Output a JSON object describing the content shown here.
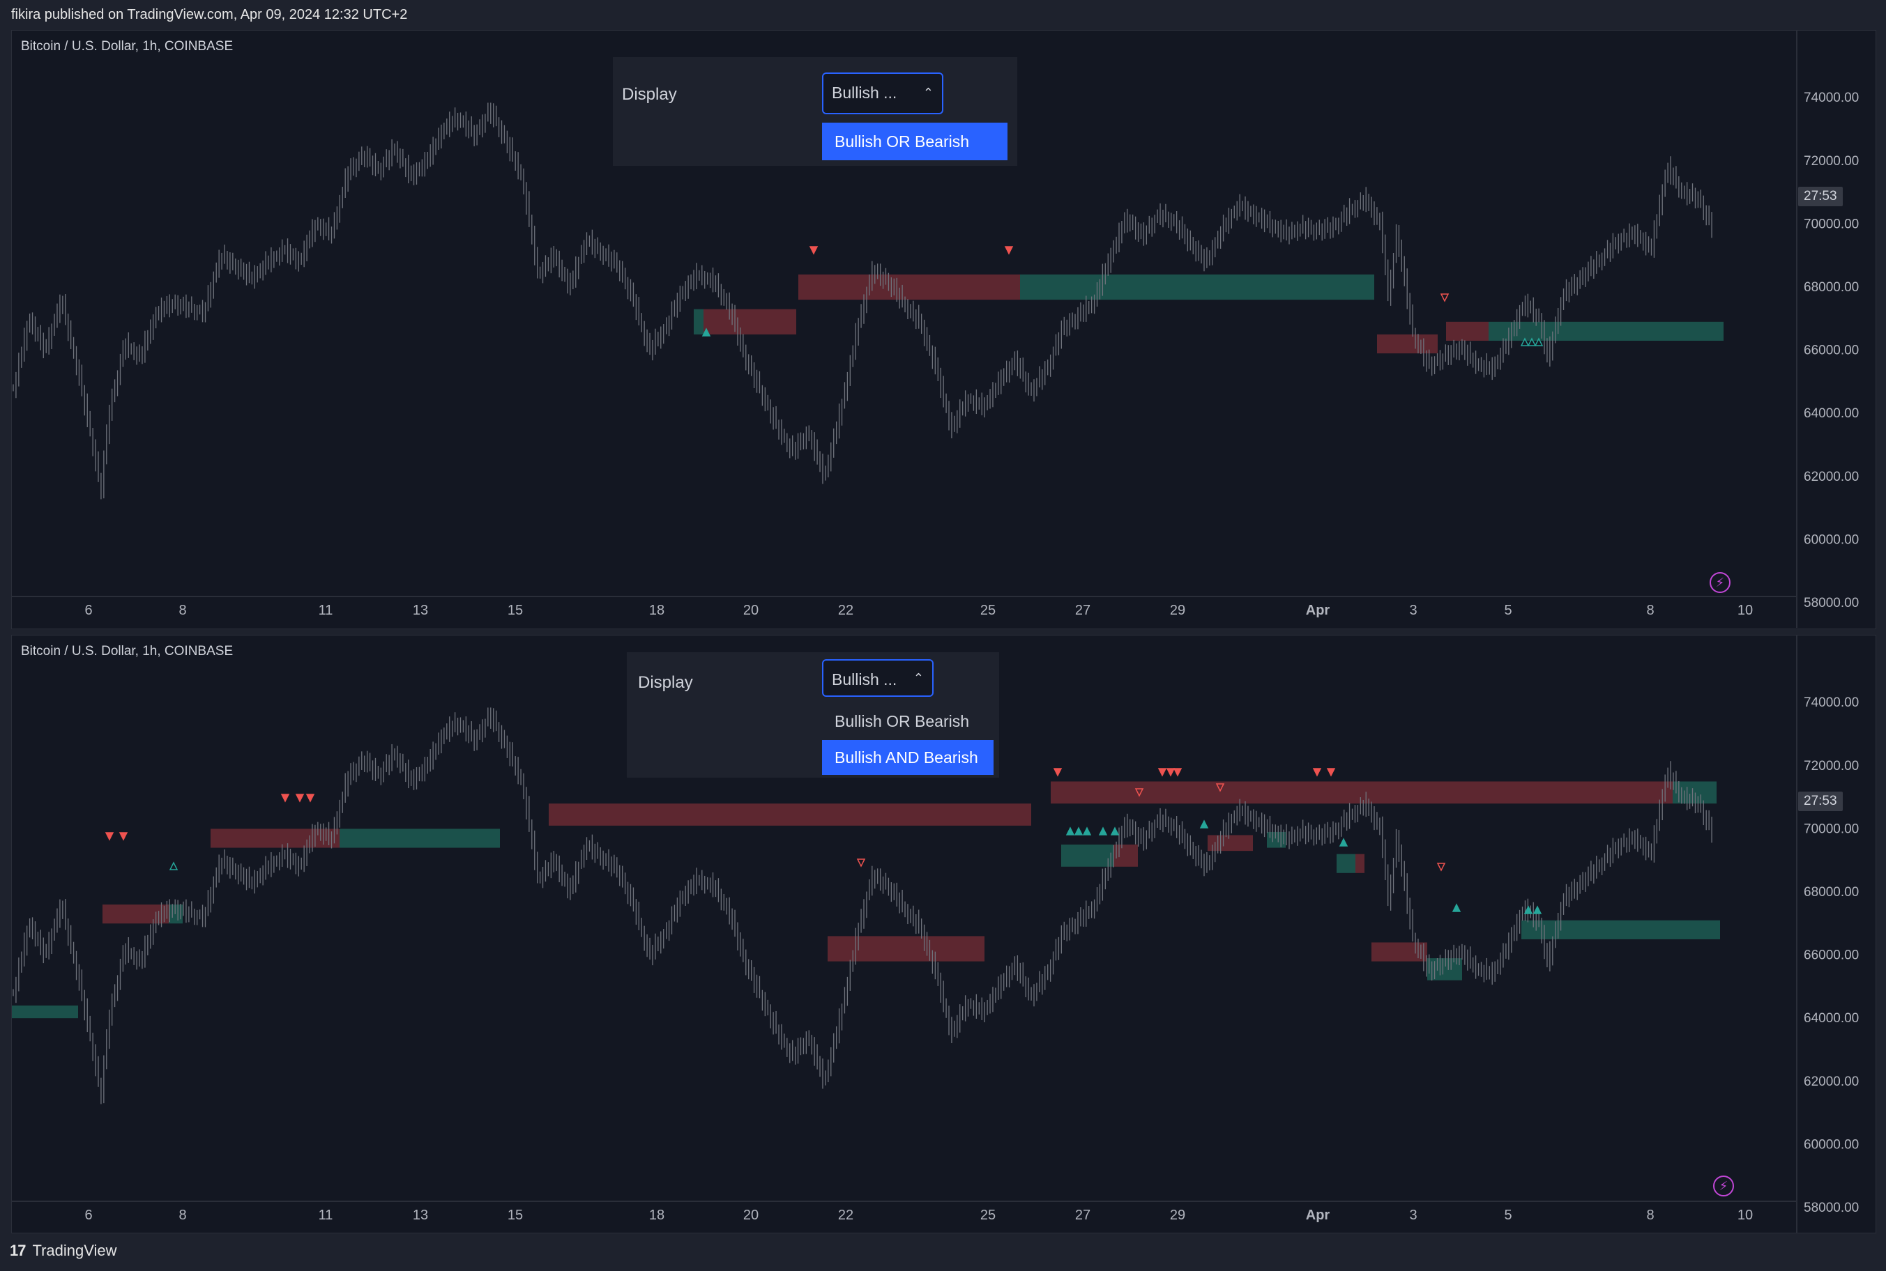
{
  "header": {
    "text": "fikira published on TradingView.com, Apr 09, 2024 12:32 UTC+2"
  },
  "footer": {
    "logo": "17",
    "brand": "TradingView"
  },
  "panels": [
    {
      "symbol": "Bitcoin / U.S. Dollar, 1h, COINBASE",
      "price_badge": "27:53",
      "dialog": {
        "label": "Display",
        "select_value": "Bullish ...",
        "options": [
          "Bullish OR Bearish"
        ],
        "selected_option": "Bullish OR Bearish"
      }
    },
    {
      "symbol": "Bitcoin / U.S. Dollar, 1h, COINBASE",
      "price_badge": "27:53",
      "dialog": {
        "label": "Display",
        "select_value": "Bullish ...",
        "options": [
          "Bullish OR Bearish",
          "Bullish AND Bearish"
        ],
        "selected_option": "Bullish AND Bearish"
      }
    }
  ],
  "chart_data": {
    "type": "candlestick",
    "y_ticks": [
      "74000.00",
      "72000.00",
      "70000.00",
      "68000.00",
      "66000.00",
      "64000.00",
      "62000.00",
      "60000.00",
      "58000.00"
    ],
    "ylim": [
      57800,
      74800
    ],
    "x_ticks": [
      "6",
      "8",
      "11",
      "13",
      "15",
      "18",
      "20",
      "22",
      "25",
      "27",
      "29",
      "Apr",
      "3",
      "5",
      "8",
      "10"
    ],
    "bull_color": "#26a69a",
    "bear_color": "#ef5350",
    "price_path": [
      [
        0,
        64800
      ],
      [
        0.01,
        67000
      ],
      [
        0.02,
        66000
      ],
      [
        0.03,
        67600
      ],
      [
        0.04,
        65500
      ],
      [
        0.05,
        63000
      ],
      [
        0.055,
        61500
      ],
      [
        0.06,
        64000
      ],
      [
        0.07,
        66200
      ],
      [
        0.08,
        65800
      ],
      [
        0.09,
        67200
      ],
      [
        0.1,
        67500
      ],
      [
        0.12,
        67200
      ],
      [
        0.13,
        69000
      ],
      [
        0.15,
        68300
      ],
      [
        0.16,
        68800
      ],
      [
        0.17,
        69200
      ],
      [
        0.18,
        68800
      ],
      [
        0.19,
        70000
      ],
      [
        0.2,
        69700
      ],
      [
        0.21,
        71600
      ],
      [
        0.22,
        72200
      ],
      [
        0.23,
        71700
      ],
      [
        0.24,
        72400
      ],
      [
        0.25,
        71500
      ],
      [
        0.26,
        72000
      ],
      [
        0.27,
        73000
      ],
      [
        0.28,
        73400
      ],
      [
        0.29,
        72800
      ],
      [
        0.3,
        73600
      ],
      [
        0.31,
        72600
      ],
      [
        0.32,
        71500
      ],
      [
        0.33,
        68400
      ],
      [
        0.34,
        69000
      ],
      [
        0.35,
        68000
      ],
      [
        0.36,
        69500
      ],
      [
        0.38,
        68700
      ],
      [
        0.39,
        67600
      ],
      [
        0.4,
        66000
      ],
      [
        0.41,
        66700
      ],
      [
        0.42,
        67800
      ],
      [
        0.43,
        68400
      ],
      [
        0.44,
        68200
      ],
      [
        0.45,
        67400
      ],
      [
        0.46,
        65800
      ],
      [
        0.48,
        63600
      ],
      [
        0.49,
        62800
      ],
      [
        0.5,
        63400
      ],
      [
        0.51,
        62000
      ],
      [
        0.52,
        64000
      ],
      [
        0.53,
        66500
      ],
      [
        0.54,
        68500
      ],
      [
        0.55,
        68200
      ],
      [
        0.56,
        67500
      ],
      [
        0.57,
        66900
      ],
      [
        0.58,
        65500
      ],
      [
        0.59,
        63500
      ],
      [
        0.6,
        64500
      ],
      [
        0.61,
        64200
      ],
      [
        0.62,
        65000
      ],
      [
        0.63,
        65700
      ],
      [
        0.64,
        64700
      ],
      [
        0.65,
        65400
      ],
      [
        0.66,
        66700
      ],
      [
        0.67,
        67100
      ],
      [
        0.68,
        67600
      ],
      [
        0.69,
        69000
      ],
      [
        0.7,
        70200
      ],
      [
        0.71,
        69600
      ],
      [
        0.72,
        70300
      ],
      [
        0.73,
        70100
      ],
      [
        0.74,
        69400
      ],
      [
        0.75,
        68800
      ],
      [
        0.76,
        69800
      ],
      [
        0.77,
        70600
      ],
      [
        0.78,
        70300
      ],
      [
        0.79,
        70000
      ],
      [
        0.8,
        69700
      ],
      [
        0.81,
        69900
      ],
      [
        0.82,
        69800
      ],
      [
        0.83,
        69900
      ],
      [
        0.84,
        70400
      ],
      [
        0.85,
        70800
      ],
      [
        0.86,
        70000
      ],
      [
        0.865,
        67600
      ],
      [
        0.87,
        69800
      ],
      [
        0.88,
        66600
      ],
      [
        0.89,
        65500
      ],
      [
        0.9,
        65800
      ],
      [
        0.91,
        66100
      ],
      [
        0.92,
        65600
      ],
      [
        0.93,
        65400
      ],
      [
        0.94,
        66300
      ],
      [
        0.95,
        67500
      ],
      [
        0.96,
        67000
      ],
      [
        0.965,
        65700
      ],
      [
        0.97,
        66800
      ],
      [
        0.975,
        67800
      ],
      [
        0.98,
        68000
      ],
      [
        0.99,
        68500
      ],
      [
        1.0,
        69000
      ],
      [
        1.01,
        69500
      ],
      [
        1.02,
        69700
      ],
      [
        1.03,
        69200
      ],
      [
        1.035,
        70500
      ],
      [
        1.04,
        71800
      ],
      [
        1.05,
        71000
      ],
      [
        1.06,
        70800
      ],
      [
        1.07,
        69700
      ]
    ]
  }
}
